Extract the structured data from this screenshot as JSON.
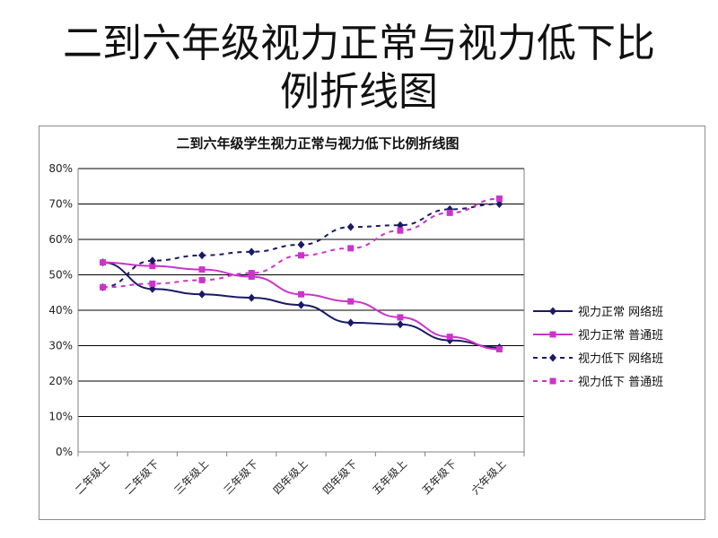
{
  "slide": {
    "title_line1": "二到六年级视力正常与视力低下比",
    "title_line2": "例折线图"
  },
  "chart_data": {
    "type": "line",
    "title": "二到六年级学生视力正常与视力低下比例折线图",
    "xlabel": "",
    "ylabel": "",
    "categories": [
      "二年级上",
      "二年级下",
      "三年级上",
      "三年级下",
      "四年级上",
      "四年级下",
      "五年级上",
      "五年级下",
      "六年级上"
    ],
    "yticks": [
      "0%",
      "10%",
      "20%",
      "30%",
      "40%",
      "50%",
      "60%",
      "70%",
      "80%"
    ],
    "ylim": [
      0,
      80
    ],
    "grid": true,
    "legend_position": "right",
    "series": [
      {
        "name": "视力正常  网络班",
        "color": "#1a1a66",
        "marker": "diamond",
        "dashed": false,
        "values": [
          53.5,
          46,
          44.5,
          43.5,
          41.5,
          36.5,
          36,
          31.5,
          29.5
        ]
      },
      {
        "name": "视力正常  普通班",
        "color": "#cc33cc",
        "marker": "square",
        "dashed": false,
        "values": [
          53.5,
          52.5,
          51.5,
          49.5,
          44.5,
          42.5,
          38,
          32.5,
          29
        ]
      },
      {
        "name": "视力低下  网络班",
        "color": "#1a1a66",
        "marker": "diamond",
        "dashed": true,
        "values": [
          46.5,
          54,
          55.5,
          56.5,
          58.5,
          63.5,
          64,
          68.5,
          70
        ]
      },
      {
        "name": "视力低下  普通班",
        "color": "#cc33cc",
        "marker": "square",
        "dashed": true,
        "values": [
          46.5,
          47.5,
          48.5,
          50.5,
          55.5,
          57.5,
          62.5,
          67.5,
          71.5
        ]
      }
    ]
  }
}
